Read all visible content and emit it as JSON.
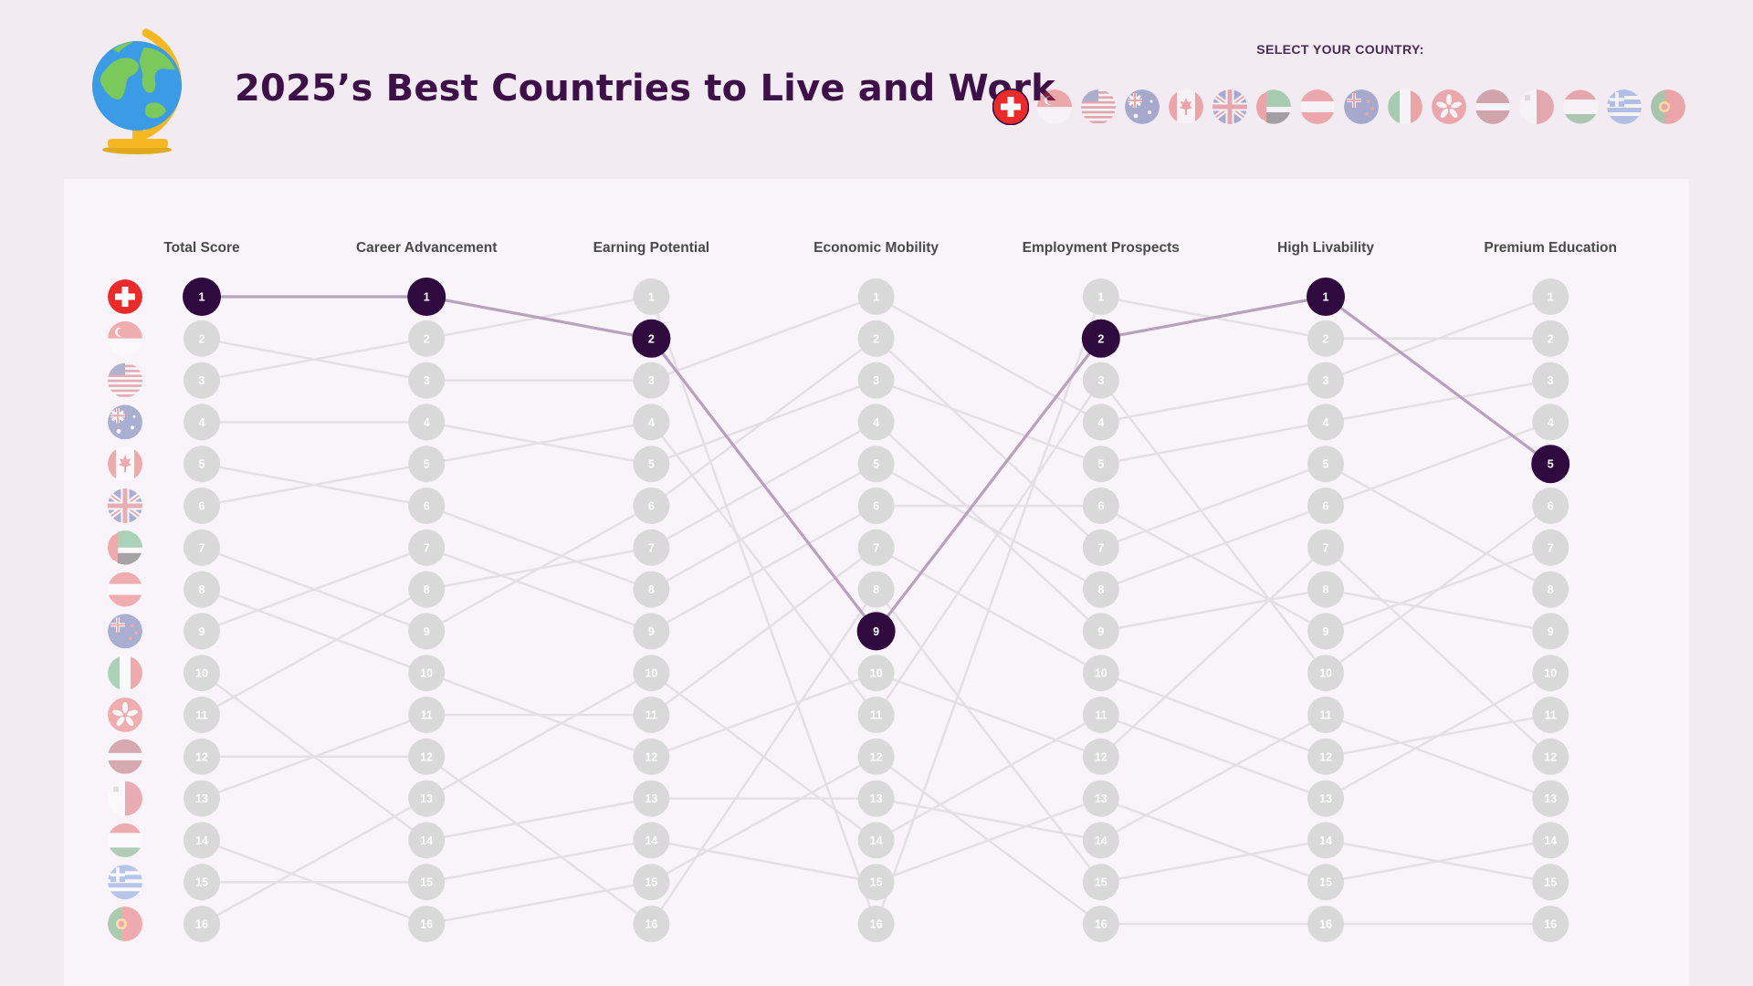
{
  "header": {
    "title": "2025’s Best Countries to Live and Work",
    "globe_icon": "globe-on-stand-icon"
  },
  "selector": {
    "label": "SELECT YOUR COUNTRY:",
    "selected": "switzerland",
    "countries": [
      "switzerland",
      "singapore",
      "usa",
      "australia",
      "canada",
      "uk",
      "uae",
      "austria",
      "new-zealand",
      "italy",
      "hong-kong",
      "latvia",
      "malta",
      "hungary",
      "greece",
      "portugal"
    ]
  },
  "colors": {
    "background": "#f2ebf2",
    "panel": "#f9f4f9",
    "highlight_node": "#2e0a3e",
    "highlight_line": "#b7a2bd",
    "inactive_node": "#d9d9d9",
    "inactive_line": "#e4dfe4",
    "title": "#3d1048"
  },
  "chart_data": {
    "type": "slope",
    "columns": [
      "Total Score",
      "Career Advancement",
      "Earning Potential",
      "Economic Mobility",
      "Employment Prospects",
      "High Livability",
      "Premium Education"
    ],
    "ranks": [
      1,
      2,
      3,
      4,
      5,
      6,
      7,
      8,
      9,
      10,
      11,
      12,
      13,
      14,
      15,
      16
    ],
    "highlight": {
      "country": "switzerland",
      "ranks": [
        1,
        1,
        2,
        9,
        2,
        1,
        5
      ]
    },
    "series": [
      {
        "country": "switzerland",
        "ranks": [
          1,
          1,
          2,
          9,
          2,
          1,
          5
        ]
      },
      {
        "country": "singapore",
        "ranks": [
          2,
          3,
          3,
          1,
          4,
          3,
          1
        ]
      },
      {
        "country": "usa",
        "ranks": [
          3,
          2,
          1,
          16,
          1,
          2,
          2
        ]
      },
      {
        "country": "australia",
        "ranks": [
          4,
          4,
          5,
          3,
          5,
          4,
          3
        ]
      },
      {
        "country": "canada",
        "ranks": [
          5,
          6,
          8,
          5,
          8,
          6,
          4
        ]
      },
      {
        "country": "uk",
        "ranks": [
          6,
          5,
          4,
          11,
          3,
          10,
          6
        ]
      },
      {
        "country": "uae",
        "ranks": [
          7,
          9,
          6,
          2,
          7,
          5,
          8
        ]
      },
      {
        "country": "austria",
        "ranks": [
          8,
          10,
          12,
          10,
          12,
          7,
          12
        ]
      },
      {
        "country": "new-zealand",
        "ranks": [
          9,
          7,
          9,
          6,
          6,
          9,
          7
        ]
      },
      {
        "country": "italy",
        "ranks": [
          10,
          14,
          13,
          13,
          14,
          11,
          13
        ]
      },
      {
        "country": "hong-kong",
        "ranks": [
          11,
          8,
          7,
          4,
          9,
          8,
          9
        ]
      },
      {
        "country": "latvia",
        "ranks": [
          12,
          12,
          16,
          8,
          15,
          14,
          15
        ]
      },
      {
        "country": "malta",
        "ranks": [
          13,
          11,
          11,
          7,
          10,
          12,
          11
        ]
      },
      {
        "country": "hungary",
        "ranks": [
          14,
          16,
          15,
          12,
          16,
          16,
          16
        ]
      },
      {
        "country": "greece",
        "ranks": [
          15,
          15,
          14,
          15,
          13,
          15,
          14
        ]
      },
      {
        "country": "portugal",
        "ranks": [
          16,
          13,
          10,
          14,
          11,
          13,
          10
        ]
      }
    ]
  }
}
